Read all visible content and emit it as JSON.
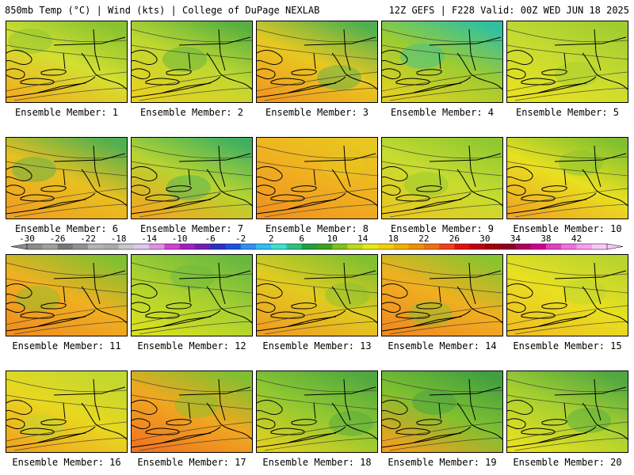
{
  "header": {
    "left": "850mb Temp (°C) | Wind (kts) | College of DuPage NEXLAB",
    "right": "12Z GEFS | F228 Valid: 00Z WED JUN 18 2025"
  },
  "colorbar": {
    "tick_labels": [
      "-30",
      "-26",
      "-22",
      "-18",
      "-14",
      "-10",
      "-6",
      "-2",
      "2",
      "6",
      "10",
      "14",
      "18",
      "22",
      "26",
      "30",
      "34",
      "38",
      "42"
    ],
    "colors": [
      "#8c8c8c",
      "#a0a0a0",
      "#787878",
      "#909090",
      "#b4b4b4",
      "#aaaaaa",
      "#c8c8c8",
      "#dcc8f0",
      "#e090e0",
      "#d040d0",
      "#a020c0",
      "#7020b0",
      "#3030c0",
      "#2050e0",
      "#3090f0",
      "#30c0f0",
      "#40e0d0",
      "#30c080",
      "#20a040",
      "#40a020",
      "#80c020",
      "#c0d820",
      "#e8e820",
      "#f0d000",
      "#f0b000",
      "#f09000",
      "#f07010",
      "#f04020",
      "#e01010",
      "#c00010",
      "#a00010",
      "#900020",
      "#b00060",
      "#d00090",
      "#e040c0",
      "#f070e0",
      "#f8a0f0",
      "#f8c8f8"
    ]
  },
  "members": [
    {
      "label": "Ensemble Member: 1",
      "base": "#d4e030",
      "north": "#88c230",
      "south": "#f0b020"
    },
    {
      "label": "Ensemble Member: 2",
      "base": "#c0d830",
      "north": "#58b040",
      "south": "#e8d020"
    },
    {
      "label": "Ensemble Member: 3",
      "base": "#e8c820",
      "north": "#50b050",
      "south": "#f09a20"
    },
    {
      "label": "Ensemble Member: 4",
      "base": "#a0cc30",
      "north": "#30c0a0",
      "south": "#e0d020"
    },
    {
      "label": "Ensemble Member: 5",
      "base": "#c8dc30",
      "north": "#a0cc30",
      "south": "#e8e020"
    },
    {
      "label": "Ensemble Member: 6",
      "base": "#e8c020",
      "north": "#50b050",
      "south": "#f0a020"
    },
    {
      "label": "Ensemble Member: 7",
      "base": "#b8d430",
      "north": "#40b060",
      "south": "#f0a820"
    },
    {
      "label": "Ensemble Member: 8",
      "base": "#f0b020",
      "north": "#e8c820",
      "south": "#f09420"
    },
    {
      "label": "Ensemble Member: 9",
      "base": "#c8dc30",
      "north": "#90c830",
      "south": "#e8c820"
    },
    {
      "label": "Ensemble Member: 10",
      "base": "#e8e020",
      "north": "#80c030",
      "south": "#f0a820"
    },
    {
      "label": "Ensemble Member: 11",
      "base": "#f0b020",
      "north": "#80c030",
      "south": "#f09020"
    },
    {
      "label": "Ensemble Member: 12",
      "base": "#a8d030",
      "north": "#68b840",
      "south": "#d8e020"
    },
    {
      "label": "Ensemble Member: 13",
      "base": "#e0cc20",
      "north": "#80c030",
      "south": "#f0a020"
    },
    {
      "label": "Ensemble Member: 14",
      "base": "#f0b020",
      "north": "#88c430",
      "south": "#f08c20"
    },
    {
      "label": "Ensemble Member: 15",
      "base": "#e8e020",
      "north": "#b8d430",
      "south": "#f0c020"
    },
    {
      "label": "Ensemble Member: 16",
      "base": "#e8d820",
      "north": "#c0d830",
      "south": "#f0a820"
    },
    {
      "label": "Ensemble Member: 17",
      "base": "#f0a820",
      "north": "#80c030",
      "south": "#f07820"
    },
    {
      "label": "Ensemble Member: 18",
      "base": "#90c830",
      "north": "#50a840",
      "south": "#e0d020"
    },
    {
      "label": "Ensemble Member: 19",
      "base": "#80c030",
      "north": "#40a040",
      "south": "#f0a020"
    },
    {
      "label": "Ensemble Member: 20",
      "base": "#a8d030",
      "north": "#50a840",
      "south": "#e8e020"
    }
  ]
}
